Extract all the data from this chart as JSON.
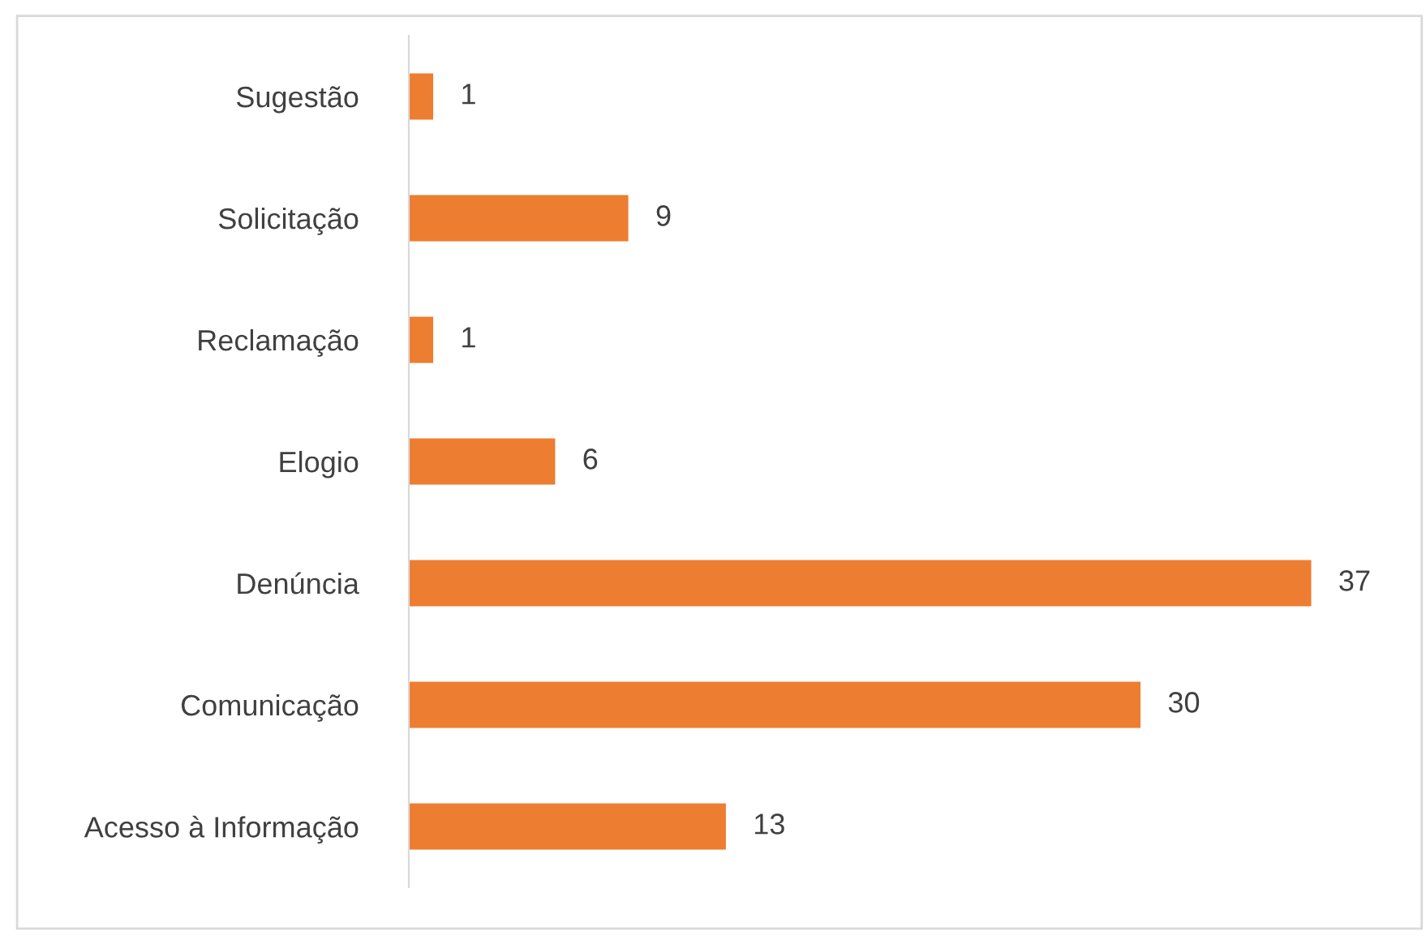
{
  "chart_data": {
    "type": "bar",
    "orientation": "horizontal",
    "categories": [
      "Sugestão",
      "Solicitação",
      "Reclamação",
      "Elogio",
      "Denúncia",
      "Comunicação",
      "Acesso à Informação"
    ],
    "values": [
      1,
      9,
      1,
      6,
      37,
      30,
      13
    ],
    "color": "#ed7d31",
    "data_labels": true,
    "grid": false,
    "legend": false
  }
}
